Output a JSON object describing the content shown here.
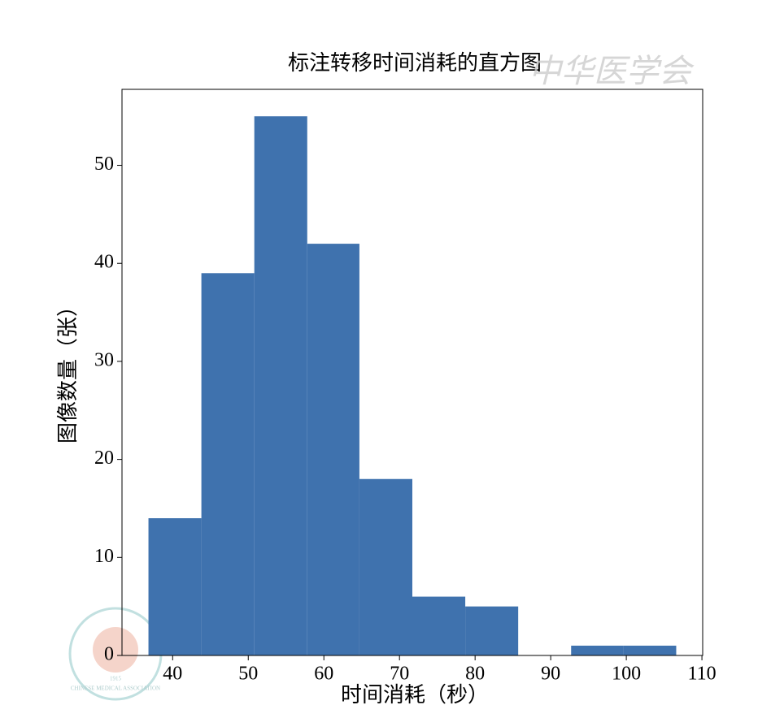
{
  "chart_data": {
    "type": "histogram",
    "title": "标注转移时间消耗的直方图",
    "x_label": "时间消耗（秒）",
    "y_label": "图像数量（张）",
    "bins": [
      36.8,
      43.8,
      50.8,
      57.8,
      64.7,
      71.7,
      78.7,
      85.7,
      92.7,
      99.6,
      106.6
    ],
    "values": [
      14,
      39,
      55,
      42,
      18,
      6,
      5,
      0,
      1,
      1
    ],
    "color": "#3f72ae",
    "xlim": [
      33.3,
      110.1
    ],
    "xticks": [
      40,
      50,
      60,
      70,
      80,
      90,
      100,
      110
    ],
    "ylim": [
      0,
      57.75
    ],
    "yticks": [
      0,
      10,
      20,
      30,
      40,
      50
    ],
    "watermark": {
      "text": "中华医学会",
      "logo_text": "CHINESE MEDICAL ASSOCIATION",
      "logo_year": "1915"
    }
  }
}
